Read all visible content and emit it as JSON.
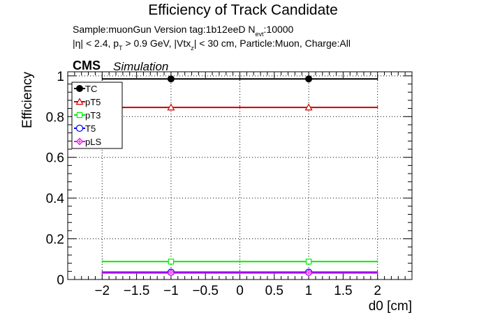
{
  "header": {
    "title": "Efficiency of Track Candidate",
    "sample_prefix": "Sample:muonGun   Version tag:1b12eeD  N",
    "sample_sub": "evt",
    "sample_suffix": ":10000",
    "cuts_a": "|η| < 2.4, p",
    "cuts_a_sub": "T",
    "cuts_b": " > 0.9 GeV, |Vtx",
    "cuts_b_sub": "z",
    "cuts_c": "| < 30 cm, Particle:Muon, Charge:All",
    "cms_label": "CMS",
    "simulation_label": "Simulation"
  },
  "chart_data": {
    "type": "scatter",
    "xlabel": "d0 [cm]",
    "ylabel": "Efficiency",
    "xlim": [
      -2.5,
      2.5
    ],
    "ylim": [
      0,
      1.02
    ],
    "xticks": [
      -2,
      -1.5,
      -1,
      -0.5,
      0,
      0.5,
      1,
      1.5,
      2
    ],
    "xtick_labels": [
      "−2",
      "−1.5",
      "−1",
      "−0.5",
      "0",
      "0.5",
      "1",
      "1.5",
      "2"
    ],
    "yticks": [
      0,
      0.2,
      0.4,
      0.6,
      0.8,
      1
    ],
    "ytick_labels": [
      "0",
      "0.2",
      "0.4",
      "0.6",
      "0.8",
      "1"
    ],
    "grid": true,
    "legend_position": "top-left",
    "bins": [
      [
        -2,
        0
      ],
      [
        0,
        2
      ]
    ],
    "x": [
      -1,
      1
    ],
    "series": [
      {
        "name": "TC",
        "values": [
          0.985,
          0.985
        ],
        "color": "#000000",
        "marker": "filled-circle"
      },
      {
        "name": "pT5",
        "values": [
          0.845,
          0.845
        ],
        "color": "#cc0000",
        "marker": "open-triangle"
      },
      {
        "name": "pT3",
        "values": [
          0.088,
          0.088
        ],
        "color": "#00ee00",
        "marker": "open-square"
      },
      {
        "name": "T5",
        "values": [
          0.036,
          0.036
        ],
        "color": "#0000ee",
        "marker": "open-circle"
      },
      {
        "name": "pLS",
        "values": [
          0.032,
          0.032
        ],
        "color": "#ee00ee",
        "marker": "open-diamond-cross"
      }
    ]
  }
}
